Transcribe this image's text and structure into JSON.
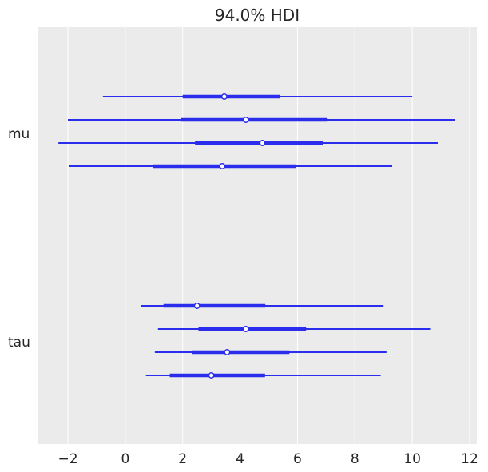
{
  "colors": {
    "background": "#ebebeb",
    "grid": "#ffffff",
    "line": "#2a2eec",
    "point_fill": "#ffffff",
    "text": "#262626"
  },
  "chart_data": {
    "type": "forest",
    "title": "94.0% HDI",
    "xlabel": "",
    "ylabel": "",
    "xlim": [
      -3,
      12.2
    ],
    "xticks": [
      -2,
      0,
      2,
      4,
      6,
      8,
      10,
      12
    ],
    "xtick_labels": [
      "−2",
      "0",
      "2",
      "4",
      "6",
      "8",
      "10",
      "12"
    ],
    "grid": "vertical",
    "variables": [
      {
        "name": "mu",
        "chains": [
          {
            "hdi_low": -0.78,
            "hdi_high": 10.0,
            "q25": 2.0,
            "q75": 5.4,
            "median": 3.45
          },
          {
            "hdi_low": -2.0,
            "hdi_high": 11.5,
            "q25": 1.95,
            "q75": 7.05,
            "median": 4.2
          },
          {
            "hdi_low": -2.33,
            "hdi_high": 10.9,
            "q25": 2.43,
            "q75": 6.9,
            "median": 4.78
          },
          {
            "hdi_low": -1.95,
            "hdi_high": 9.3,
            "q25": 0.97,
            "q75": 5.95,
            "median": 3.38
          }
        ]
      },
      {
        "name": "tau",
        "chains": [
          {
            "hdi_low": 0.55,
            "hdi_high": 9.0,
            "q25": 1.33,
            "q75": 4.88,
            "median": 2.5
          },
          {
            "hdi_low": 1.14,
            "hdi_high": 10.65,
            "q25": 2.55,
            "q75": 6.3,
            "median": 4.2
          },
          {
            "hdi_low": 1.03,
            "hdi_high": 9.1,
            "q25": 2.32,
            "q75": 5.72,
            "median": 3.55
          },
          {
            "hdi_low": 0.72,
            "hdi_high": 8.9,
            "q25": 1.55,
            "q75": 4.87,
            "median": 3.0
          }
        ]
      }
    ]
  }
}
